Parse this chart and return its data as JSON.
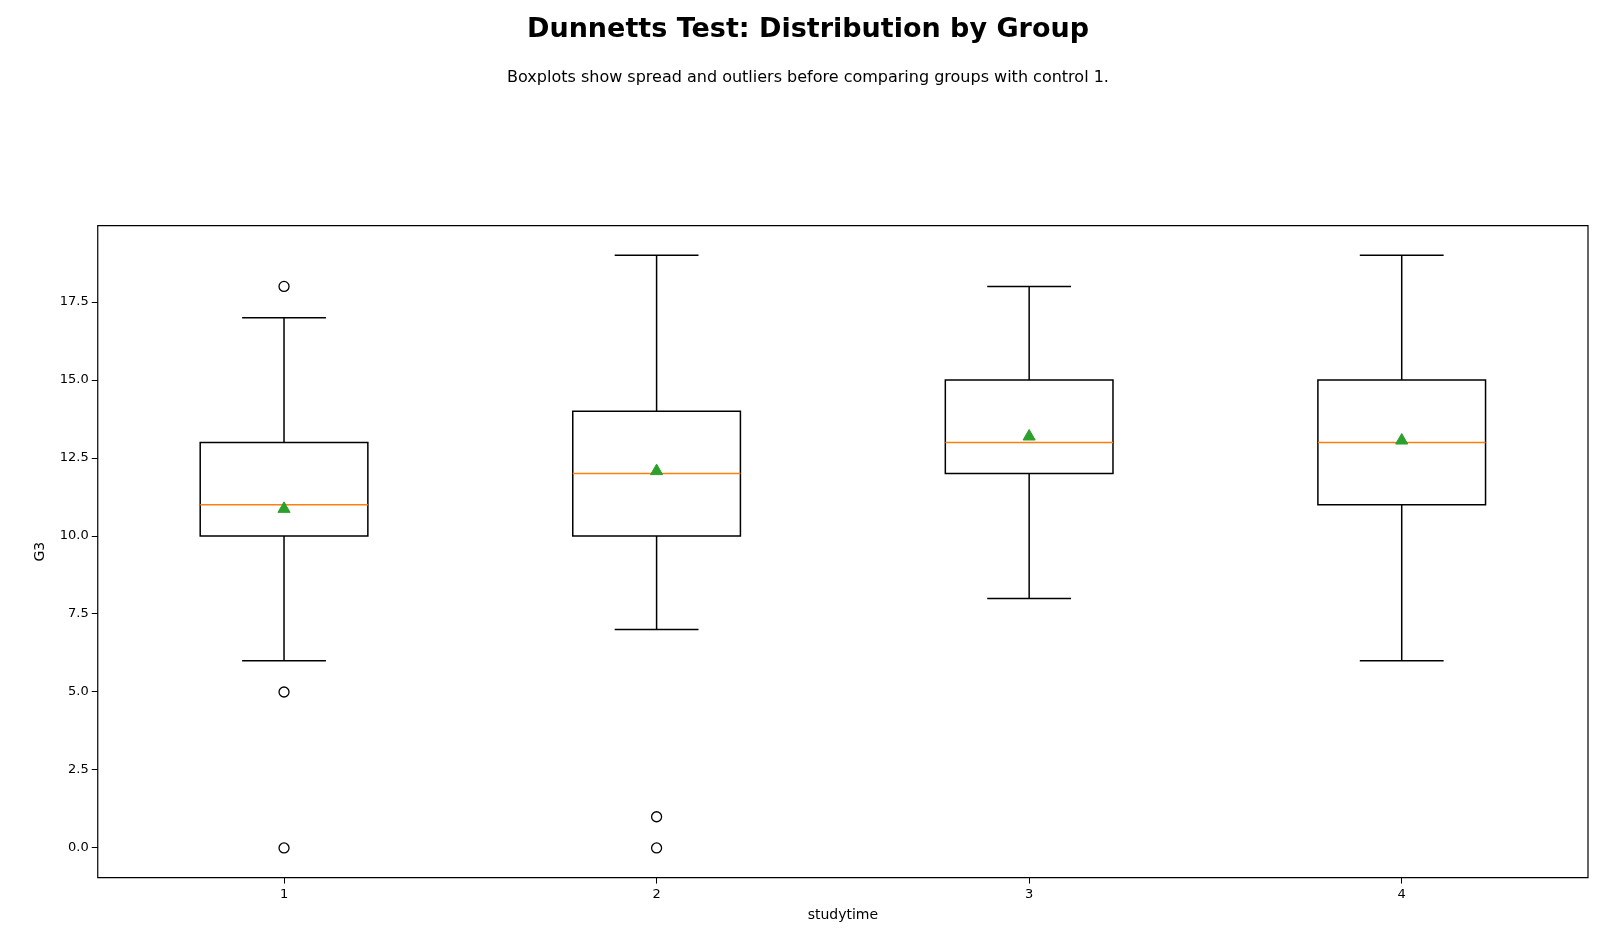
{
  "chart_data": {
    "type": "box",
    "title": "Dunnetts Test: Distribution by Group",
    "subtitle": "Boxplots show spread and outliers before comparing groups with control 1.",
    "xlabel": "studytime",
    "ylabel": "G3",
    "categories": [
      "1",
      "2",
      "3",
      "4"
    ],
    "series": [
      {
        "color": "#000000",
        "boxes": [
          {
            "low": 6,
            "q1": 10,
            "median": 11,
            "q3": 13,
            "high": 17,
            "mean": 10.87,
            "outliers": [
              0,
              5,
              18
            ]
          },
          {
            "low": 7,
            "q1": 10,
            "median": 12,
            "q3": 14,
            "high": 19,
            "mean": 12.08,
            "outliers": [
              0,
              1
            ]
          },
          {
            "low": 8,
            "q1": 12,
            "median": 13,
            "q3": 15,
            "high": 18,
            "mean": 13.19
          },
          {
            "low": 6,
            "q1": 11,
            "median": 13,
            "q3": 15,
            "high": 19,
            "mean": 13.06
          }
        ]
      }
    ],
    "ylim": [
      -0.95,
      19.95
    ],
    "yticks": [
      {
        "value": 0,
        "label": "0.0"
      },
      {
        "value": 2.5,
        "label": "2.5"
      },
      {
        "value": 5,
        "label": "5.0"
      },
      {
        "value": 7.5,
        "label": "7.5"
      },
      {
        "value": 10,
        "label": "10.0"
      },
      {
        "value": 12.5,
        "label": "12.5"
      },
      {
        "value": 15,
        "label": "15.0"
      },
      {
        "value": 17.5,
        "label": "17.5"
      }
    ],
    "grid": false,
    "legend": false,
    "marker": "triangle"
  }
}
